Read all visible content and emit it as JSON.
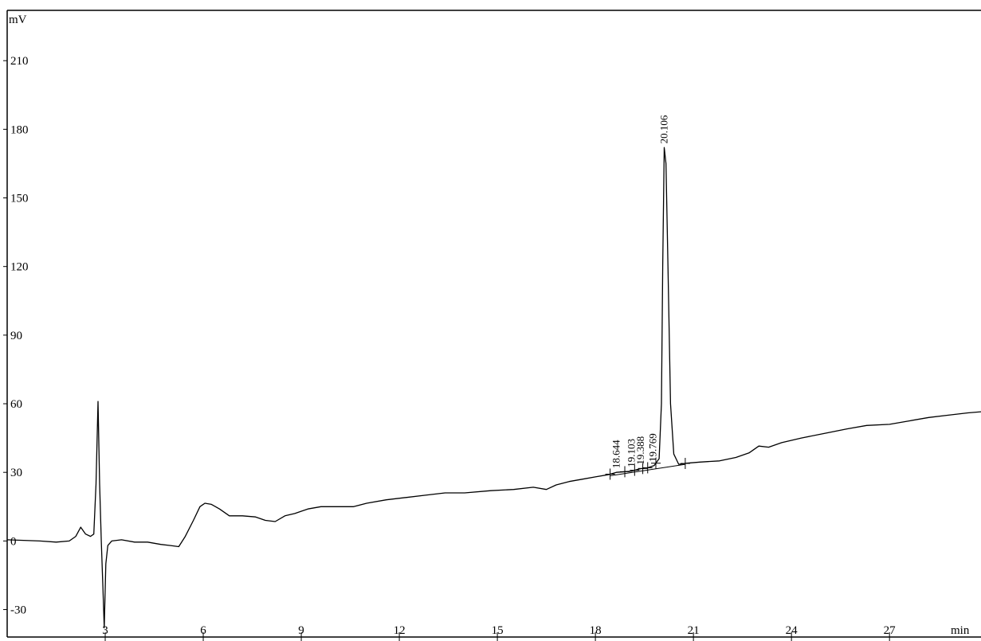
{
  "chart_data": {
    "type": "line",
    "ylabel": "mV",
    "xlabel": "min",
    "xlim": [
      0.0,
      29.8
    ],
    "ylim": [
      -42,
      232
    ],
    "x_ticks": [
      3,
      6,
      9,
      12,
      15,
      18,
      21,
      24,
      27
    ],
    "y_ticks": [
      -30,
      0,
      30,
      60,
      90,
      120,
      150,
      180,
      210
    ],
    "grid": false,
    "line_color": "#000000",
    "series": [
      {
        "points": [
          [
            0.0,
            0.5
          ],
          [
            1.0,
            0.0
          ],
          [
            1.5,
            -0.5
          ],
          [
            1.9,
            0.0
          ],
          [
            2.1,
            2.0
          ],
          [
            2.25,
            6.0
          ],
          [
            2.4,
            3.0
          ],
          [
            2.55,
            2.0
          ],
          [
            2.65,
            3.0
          ],
          [
            2.72,
            25.0
          ],
          [
            2.78,
            61.0
          ],
          [
            2.83,
            25.0
          ],
          [
            2.88,
            0.0
          ],
          [
            2.93,
            -20.0
          ],
          [
            2.97,
            -38.0
          ],
          [
            3.02,
            -10.0
          ],
          [
            3.08,
            -2.0
          ],
          [
            3.2,
            0.0
          ],
          [
            3.5,
            0.5
          ],
          [
            3.9,
            -0.5
          ],
          [
            4.3,
            -0.5
          ],
          [
            4.7,
            -1.5
          ],
          [
            5.0,
            -2.0
          ],
          [
            5.25,
            -2.5
          ],
          [
            5.45,
            2.0
          ],
          [
            5.7,
            9.0
          ],
          [
            5.9,
            15.0
          ],
          [
            6.05,
            16.5
          ],
          [
            6.25,
            16.0
          ],
          [
            6.5,
            14.0
          ],
          [
            6.8,
            11.0
          ],
          [
            7.2,
            11.0
          ],
          [
            7.6,
            10.5
          ],
          [
            7.9,
            9.0
          ],
          [
            8.2,
            8.5
          ],
          [
            8.5,
            11.0
          ],
          [
            8.8,
            12.0
          ],
          [
            9.2,
            14.0
          ],
          [
            9.6,
            15.0
          ],
          [
            10.0,
            15.0
          ],
          [
            10.6,
            15.0
          ],
          [
            11.0,
            16.5
          ],
          [
            11.6,
            18.0
          ],
          [
            12.2,
            19.0
          ],
          [
            12.8,
            20.0
          ],
          [
            13.4,
            21.0
          ],
          [
            14.0,
            21.0
          ],
          [
            14.8,
            22.0
          ],
          [
            15.5,
            22.5
          ],
          [
            16.1,
            23.5
          ],
          [
            16.5,
            22.5
          ],
          [
            16.8,
            24.5
          ],
          [
            17.2,
            26.0
          ],
          [
            17.6,
            27.0
          ],
          [
            18.0,
            28.0
          ],
          [
            18.4,
            29.0
          ],
          [
            18.64,
            30.0
          ],
          [
            19.1,
            30.5
          ],
          [
            19.35,
            31.5
          ],
          [
            19.6,
            32.0
          ],
          [
            19.8,
            33.0
          ],
          [
            19.95,
            36.0
          ],
          [
            20.02,
            60.0
          ],
          [
            20.06,
            120.0
          ],
          [
            20.106,
            172.0
          ],
          [
            20.16,
            165.0
          ],
          [
            20.22,
            120.0
          ],
          [
            20.3,
            60.0
          ],
          [
            20.4,
            38.0
          ],
          [
            20.55,
            33.5
          ],
          [
            20.8,
            34.0
          ],
          [
            21.2,
            34.5
          ],
          [
            21.8,
            35.0
          ],
          [
            22.3,
            36.5
          ],
          [
            22.7,
            38.5
          ],
          [
            23.0,
            41.5
          ],
          [
            23.3,
            41.0
          ],
          [
            23.7,
            43.0
          ],
          [
            24.3,
            45.0
          ],
          [
            25.0,
            47.0
          ],
          [
            25.7,
            49.0
          ],
          [
            26.3,
            50.5
          ],
          [
            27.0,
            51.0
          ],
          [
            27.6,
            52.5
          ],
          [
            28.2,
            54.0
          ],
          [
            28.8,
            55.0
          ],
          [
            29.4,
            56.0
          ],
          [
            29.8,
            56.5
          ]
        ]
      }
    ],
    "baseline": [
      [
        18.45,
        28.5
      ],
      [
        20.75,
        33.5
      ]
    ],
    "peaks": [
      {
        "label": "18.644",
        "x": 18.644
      },
      {
        "label": "19.103",
        "x": 19.103
      },
      {
        "label": "19.388",
        "x": 19.388
      },
      {
        "label": "19.769",
        "x": 19.769
      },
      {
        "label": "20.106",
        "x": 20.106
      }
    ],
    "integration_marks": [
      18.45,
      18.9,
      19.2,
      19.45,
      19.6,
      19.85,
      20.75
    ]
  }
}
